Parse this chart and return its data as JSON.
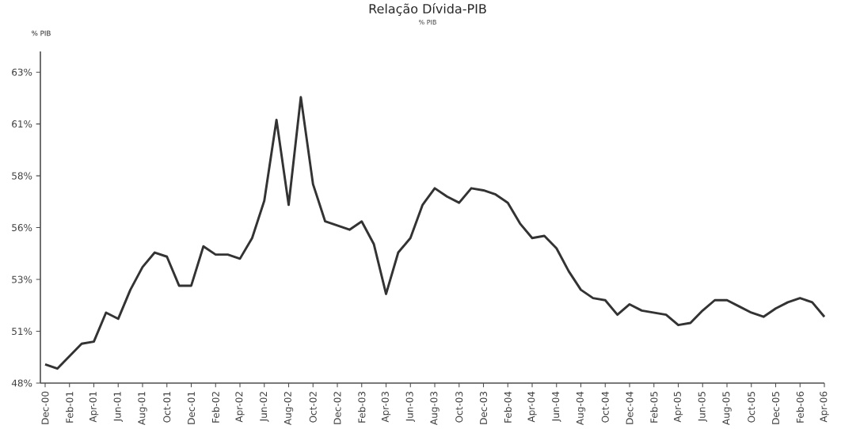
{
  "chart_data": {
    "type": "line",
    "title": "Relação Dívida-PIB",
    "subtitle": "% PIB",
    "ylabel": "% PIB",
    "categories": [
      "Dec-00",
      null,
      "Feb-01",
      null,
      "Apr-01",
      null,
      "Jun-01",
      null,
      "Aug-01",
      null,
      "Oct-01",
      null,
      "Dec-01",
      null,
      "Feb-02",
      null,
      "Apr-02",
      null,
      "Jun-02",
      null,
      "Aug-02",
      null,
      "Oct-02",
      null,
      "Dec-02",
      null,
      "Feb-03",
      null,
      "Apr-03",
      null,
      "Jun-03",
      null,
      "Aug-03",
      null,
      "Oct-03",
      null,
      "Dec-03",
      null,
      "Feb-04",
      null,
      "Apr-04",
      null,
      "Jun-04",
      null,
      "Aug-04",
      null,
      "Oct-04",
      null,
      "Dec-04",
      null,
      "Feb-05",
      null,
      "Apr-05",
      null,
      "Jun-05",
      null,
      "Aug-05",
      null,
      "Oct-05",
      null,
      "Dec-05",
      null,
      "Feb-06",
      null,
      "Apr-06"
    ],
    "series": [
      {
        "color": "#333333",
        "values": [
          48.9,
          48.7,
          49.3,
          49.9,
          50.0,
          51.4,
          51.1,
          52.5,
          53.6,
          54.3,
          54.1,
          52.7,
          52.7,
          54.6,
          54.2,
          54.2,
          54.0,
          55.0,
          56.8,
          60.7,
          56.6,
          61.8,
          57.6,
          55.8,
          55.6,
          55.4,
          55.8,
          54.7,
          52.3,
          54.3,
          55.0,
          56.6,
          57.4,
          57.0,
          56.7,
          57.4,
          57.3,
          57.1,
          56.7,
          55.7,
          55.0,
          55.1,
          54.5,
          53.4,
          52.5,
          52.1,
          52.0,
          51.3,
          51.8,
          51.5,
          51.4,
          51.3,
          50.8,
          50.9,
          51.5,
          52.0,
          52.0,
          51.7,
          51.4,
          51.2,
          51.6,
          51.9,
          52.1,
          51.9,
          51.2
        ]
      }
    ],
    "ylim": [
      48,
      64
    ],
    "yticks": [
      {
        "value": 48,
        "label": "48%"
      },
      {
        "value": 50.5,
        "label": "51%"
      },
      {
        "value": 53,
        "label": "53%"
      },
      {
        "value": 55.5,
        "label": "56%"
      },
      {
        "value": 58,
        "label": "58%"
      },
      {
        "value": 60.5,
        "label": "61%"
      },
      {
        "value": 63,
        "label": "63%"
      }
    ]
  }
}
